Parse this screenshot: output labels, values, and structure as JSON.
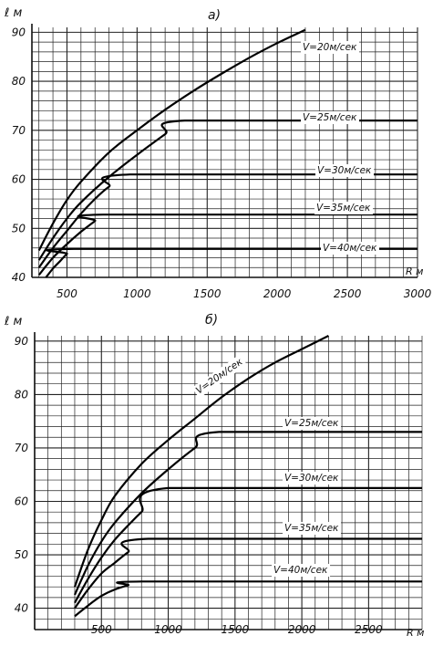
{
  "chart_data": [
    {
      "type": "line",
      "panel_label": "а)",
      "ylabel": "ℓ м",
      "xlabel": "R м",
      "xlim": [
        250,
        3000
      ],
      "ylim": [
        40,
        91
      ],
      "x_ticks": [
        500,
        1000,
        1500,
        2000,
        2500,
        3000
      ],
      "y_ticks": [
        40,
        50,
        60,
        70,
        80,
        90
      ],
      "grid": true,
      "series": [
        {
          "name": "V=20м/сек",
          "x": [
            300,
            400,
            500,
            600,
            800,
            1000,
            1200,
            1400,
            1600,
            1800,
            2000,
            2200
          ],
          "y": [
            45.5,
            51,
            55.8,
            59.5,
            65.5,
            70,
            74.2,
            78,
            81.5,
            84.8,
            87.8,
            90.5
          ]
        },
        {
          "name": "V=25м/сек",
          "x": [
            300,
            400,
            500,
            600,
            800,
            1000,
            1200,
            1340,
            3000
          ],
          "y": [
            43.5,
            48,
            52,
            55.3,
            60.5,
            65,
            69.2,
            72,
            72
          ]
        },
        {
          "name": "V=30м/сек",
          "x": [
            300,
            400,
            500,
            600,
            700,
            800,
            950,
            3000
          ],
          "y": [
            42,
            46,
            49.5,
            53,
            56,
            58.5,
            61,
            61
          ]
        },
        {
          "name": "V=35м/сек",
          "x": [
            300,
            400,
            500,
            600,
            700,
            760,
            3000
          ],
          "y": [
            40.5,
            44,
            46.8,
            49.3,
            51.5,
            52.8,
            52.8
          ]
        },
        {
          "name": "V=40м/сек",
          "x": [
            350,
            400,
            450,
            500,
            550,
            3000
          ],
          "y": [
            40,
            41.8,
            43.3,
            44.8,
            45.8,
            45.8
          ]
        }
      ]
    },
    {
      "type": "line",
      "panel_label": "б)",
      "ylabel": "ℓ м",
      "xlabel": "R м",
      "xlim": [
        0,
        2900
      ],
      "ylim": [
        36,
        91
      ],
      "x_ticks": [
        500,
        1000,
        1500,
        2000,
        2500
      ],
      "y_ticks": [
        40,
        50,
        60,
        70,
        80,
        90
      ],
      "grid": true,
      "series": [
        {
          "name": "V=20м/сек",
          "x": [
            300,
            400,
            500,
            600,
            800,
            1000,
            1200,
            1400,
            1600,
            1800,
            2000,
            2200
          ],
          "y": [
            44,
            51,
            56.5,
            61,
            67,
            71.5,
            75.5,
            79.5,
            83,
            86,
            88.5,
            91
          ]
        },
        {
          "name": "V=25м/сек",
          "x": [
            300,
            400,
            500,
            600,
            800,
            1000,
            1200,
            1380,
            2900
          ],
          "y": [
            42.5,
            48,
            52.5,
            56,
            61.5,
            66,
            70,
            73,
            73
          ]
        },
        {
          "name": "V=30м/сек",
          "x": [
            300,
            400,
            500,
            600,
            700,
            800,
            1000,
            2900
          ],
          "y": [
            41,
            45.5,
            49.5,
            52.8,
            55.5,
            58,
            62.5,
            62.5
          ]
        },
        {
          "name": "V=35м/сек",
          "x": [
            300,
            400,
            500,
            600,
            700,
            850,
            2900
          ],
          "y": [
            40,
            43.5,
            46.5,
            48.5,
            50.5,
            53,
            53
          ]
        },
        {
          "name": "V=40м/сек",
          "x": [
            300,
            400,
            500,
            600,
            700,
            800,
            2900
          ],
          "y": [
            38.5,
            40.5,
            42.3,
            43.5,
            44.3,
            45,
            45
          ]
        }
      ]
    }
  ]
}
